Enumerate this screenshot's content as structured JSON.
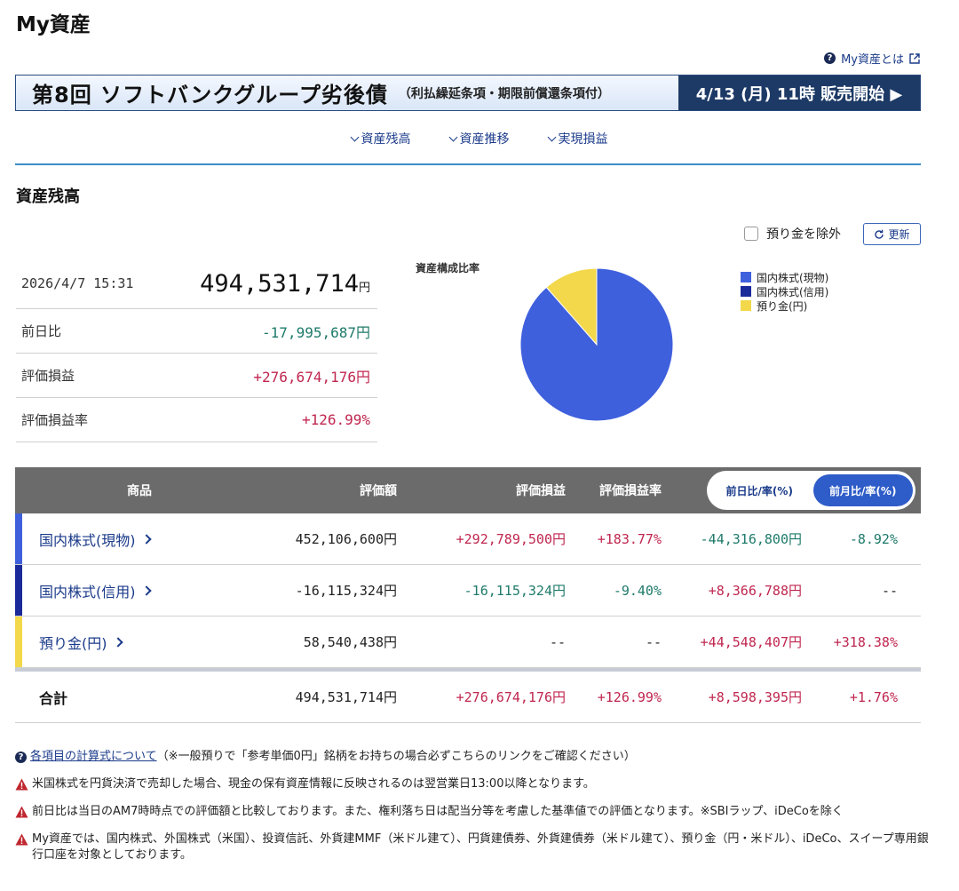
{
  "page": {
    "title": "My資産"
  },
  "help": {
    "label": "My資産とは"
  },
  "banner": {
    "main_text": "第8回 ソフトバンクグループ劣後債",
    "sub_text": "（利払繰延条項・期限前償還条項付）",
    "cta_text": "4/13 (月) 11時 販売開始 ▶"
  },
  "anchor_nav": {
    "items": [
      {
        "label": "資産残高"
      },
      {
        "label": "資産推移"
      },
      {
        "label": "実現損益"
      }
    ]
  },
  "balance": {
    "section_title": "資産残高",
    "exclude_deposit_label": "預り金を除外",
    "refresh_label": "更新",
    "timestamp": "2026/4/7 15:31",
    "total_value": "494,531,714",
    "total_unit": "円",
    "rows": [
      {
        "label": "前日比",
        "value": "-17,995,687円"
      },
      {
        "label": "評価損益",
        "value": "+276,674,176円"
      },
      {
        "label": "評価損益率",
        "value": "+126.99%"
      }
    ]
  },
  "composition_chart": {
    "title": "資産構成比率",
    "legend": [
      {
        "label": "国内株式(現物)",
        "color": "#3f60dd"
      },
      {
        "label": "国内株式(信用)",
        "color": "#1a2a9a"
      },
      {
        "label": "預り金(円)",
        "color": "#f2d84a"
      }
    ]
  },
  "chart_data": {
    "type": "pie",
    "title": "資産構成比率",
    "labels": [
      "国内株式(現物)",
      "国内株式(信用)",
      "預り金(円)"
    ],
    "values": [
      452106600,
      0,
      58540438
    ],
    "colors": [
      "#3f60dd",
      "#1a2a9a",
      "#f2d84a"
    ]
  },
  "holdings_table": {
    "headers": {
      "product": "商品",
      "valuation": "評価額",
      "gain": "評価損益",
      "gain_rate": "評価損益率",
      "toggle_day": "前日比/率(%)",
      "toggle_month": "前月比/率(%)"
    },
    "rows": [
      {
        "name": "国内株式(現物)",
        "valuation": "452,106,600円",
        "gain": "+292,789,500円",
        "gain_rate": "+183.77%",
        "change": "-44,316,800円",
        "change_rate": "-8.92%",
        "bar_color": "#3f60dd"
      },
      {
        "name": "国内株式(信用)",
        "valuation": "-16,115,324円",
        "gain": "-16,115,324円",
        "gain_rate": "-9.40%",
        "change": "+8,366,788円",
        "change_rate": "--",
        "bar_color": "#1a2a9a"
      },
      {
        "name": "預り金(円)",
        "valuation": "58,540,438円",
        "gain": "--",
        "gain_rate": "--",
        "change": "+44,548,407円",
        "change_rate": "+318.38%",
        "bar_color": "#f2d84a"
      }
    ],
    "total": {
      "name": "合計",
      "valuation": "494,531,714円",
      "gain": "+276,674,176円",
      "gain_rate": "+126.99%",
      "change": "+8,598,395円",
      "change_rate": "+1.76%"
    }
  },
  "notes": {
    "calc_link": "各項目の計算式について",
    "calc_suffix": "（※一般預りで「参考単価0円」銘柄をお持ちの場合必ずこちらのリンクをご確認ください）",
    "warning_1": "米国株式を円貨決済で売却した場合、現金の保有資産情報に反映されるのは翌営業日13:00以降となります。",
    "warning_2": "前日比は当日のAM7時時点での評価額と比較しております。また、権利落ち日は配当分等を考慮した基準値での評価となります。※SBIラップ、iDeCoを除く",
    "warning_3": "My資産では、国内株式、外国株式（米国）、投資信託、外貨建MMF（米ドル建て）、円貨建債券、外貨建債券（米ドル建て）、預り金（円・米ドル）、iDeCo、スイープ専用銀行口座を対象としております。"
  }
}
